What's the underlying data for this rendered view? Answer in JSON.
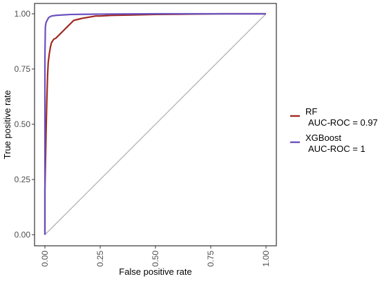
{
  "chart_data": {
    "type": "line",
    "title": "",
    "xlabel": "False positive rate",
    "ylabel": "True positive rate",
    "xlim": [
      0,
      1
    ],
    "ylim": [
      0,
      1
    ],
    "x_ticks": [
      "0.00",
      "0.25",
      "0.50",
      "0.75",
      "1.00"
    ],
    "y_ticks": [
      "0.00",
      "0.25",
      "0.50",
      "0.75",
      "1.00"
    ],
    "x_tick_values": [
      0,
      0.25,
      0.5,
      0.75,
      1
    ],
    "y_tick_values": [
      0,
      0.25,
      0.5,
      0.75,
      1
    ],
    "grid": false,
    "legend_position": "right",
    "series": [
      {
        "name": "RF",
        "auc_label": "AUC-ROC = 0.97",
        "color": "#a0281e",
        "x": [
          0,
          0,
          0.003,
          0.006,
          0.009,
          0.012,
          0.015,
          0.02,
          0.025,
          0.03,
          0.04,
          0.05,
          0.06,
          0.07,
          0.08,
          0.09,
          0.1,
          0.11,
          0.12,
          0.13,
          0.15,
          0.17,
          0.2,
          0.23,
          0.25,
          0.3,
          0.4,
          0.5,
          0.6,
          0.7,
          0.8,
          0.9,
          1.0
        ],
        "y": [
          0,
          0.2,
          0.35,
          0.5,
          0.62,
          0.72,
          0.78,
          0.82,
          0.85,
          0.87,
          0.885,
          0.89,
          0.9,
          0.91,
          0.92,
          0.93,
          0.94,
          0.95,
          0.96,
          0.97,
          0.975,
          0.98,
          0.985,
          0.99,
          0.99,
          0.993,
          0.995,
          0.997,
          0.998,
          0.999,
          1.0,
          1.0,
          1.0
        ]
      },
      {
        "name": "XGBoost",
        "auc_label": "AUC-ROC = 1",
        "color": "#6a4fbf",
        "x": [
          0,
          0,
          0.002,
          0.005,
          0.01,
          0.015,
          0.02,
          0.03,
          0.05,
          0.08,
          0.12,
          0.2,
          0.3,
          0.5,
          0.7,
          1.0
        ],
        "y": [
          0,
          0.8,
          0.94,
          0.96,
          0.97,
          0.98,
          0.985,
          0.99,
          0.993,
          0.995,
          0.997,
          0.998,
          0.999,
          1.0,
          1.0,
          1.0
        ]
      }
    ],
    "reference_line": {
      "color": "#b0b0b0",
      "x": [
        0,
        1
      ],
      "y": [
        0,
        1
      ]
    }
  }
}
